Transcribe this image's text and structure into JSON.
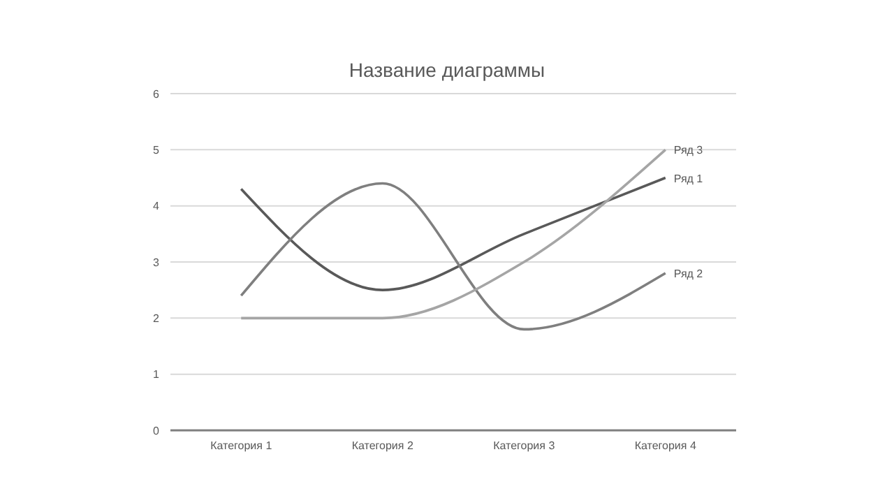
{
  "chart_data": {
    "type": "line",
    "title": "Название диаграммы",
    "categories": [
      "Категория 1",
      "Категория 2",
      "Категория 3",
      "Категория 4"
    ],
    "series": [
      {
        "name": "Ряд 1",
        "color": "#595959",
        "values": [
          4.3,
          2.5,
          3.5,
          4.5
        ]
      },
      {
        "name": "Ряд 2",
        "color": "#7f7f7f",
        "values": [
          2.4,
          4.4,
          1.8,
          2.8
        ]
      },
      {
        "name": "Ряд 3",
        "color": "#a5a5a5",
        "values": [
          2,
          2,
          3,
          5
        ]
      }
    ],
    "ylim": [
      0,
      6
    ],
    "yticks": [
      0,
      1,
      2,
      3,
      4,
      5,
      6
    ],
    "grid": "y",
    "legend": false,
    "marker": "none",
    "line_style": "solid"
  }
}
